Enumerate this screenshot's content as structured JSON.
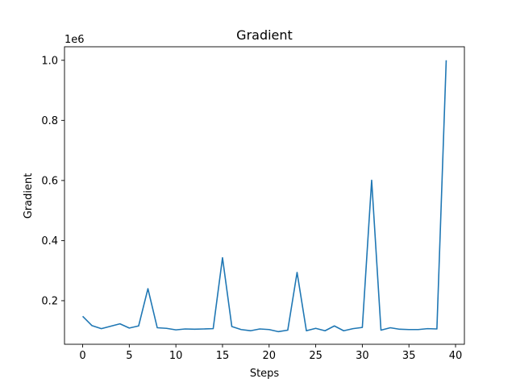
{
  "chart_data": {
    "type": "line",
    "title": "Gradient",
    "xlabel": "Steps",
    "ylabel": "Gradient",
    "offset_text": "1e6",
    "xlim": [
      -1.95,
      40.95
    ],
    "ylim": [
      0.055,
      1.045
    ],
    "xticks": [
      0,
      5,
      10,
      15,
      20,
      25,
      30,
      35,
      40
    ],
    "yticks": [
      0.2,
      0.4,
      0.6,
      0.8,
      1.0
    ],
    "ytick_labels": [
      "0.2",
      "0.4",
      "0.6",
      "0.8",
      "1.0"
    ],
    "grid": false,
    "series": [
      {
        "color": "#1f77b4",
        "x": [
          0,
          1,
          2,
          3,
          4,
          5,
          6,
          7,
          8,
          9,
          10,
          11,
          12,
          13,
          14,
          15,
          16,
          17,
          18,
          19,
          20,
          21,
          22,
          23,
          24,
          25,
          26,
          27,
          28,
          29,
          30,
          31,
          32,
          33,
          34,
          35,
          36,
          37,
          38,
          39
        ],
        "y": [
          0.148,
          0.117,
          0.107,
          0.115,
          0.123,
          0.109,
          0.116,
          0.24,
          0.11,
          0.108,
          0.103,
          0.106,
          0.105,
          0.106,
          0.107,
          0.343,
          0.114,
          0.104,
          0.1,
          0.106,
          0.104,
          0.097,
          0.102,
          0.294,
          0.1,
          0.108,
          0.1,
          0.116,
          0.1,
          0.107,
          0.111,
          0.601,
          0.102,
          0.11,
          0.105,
          0.104,
          0.104,
          0.107,
          0.106,
          1.0
        ]
      }
    ]
  }
}
